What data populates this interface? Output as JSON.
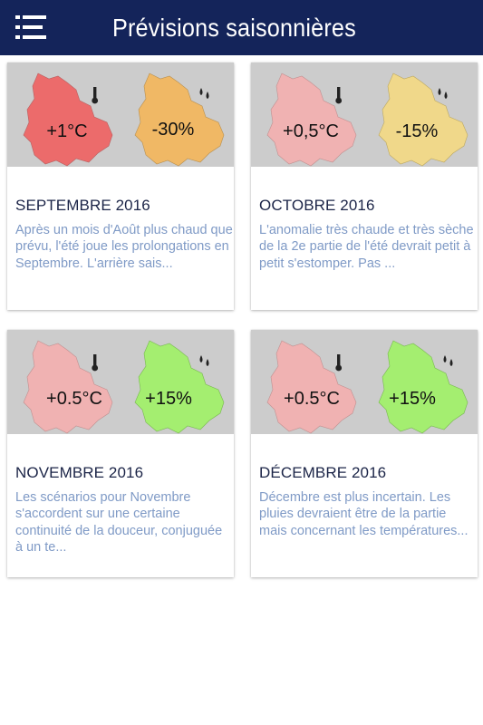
{
  "header": {
    "title": "Prévisions saisonnières",
    "bar_color": "#14245a"
  },
  "cards": [
    {
      "month": "SEPTEMBRE 2016",
      "excerpt": "Après un mois d'Août plus chaud que prévu, l'été joue les prolongations en Septembre. L'arrière sais...",
      "temp_label": "+1°C",
      "rain_label": "-30%",
      "temp_color": "#ec6b6b",
      "rain_color": "#f0b865"
    },
    {
      "month": "OCTOBRE 2016",
      "excerpt": "L'anomalie très chaude et très sèche de la 2e partie de l'été devrait petit à petit s'estomper. Pas ...",
      "temp_label": "+0,5°C",
      "rain_label": "-15%",
      "temp_color": "#f0b2b2",
      "rain_color": "#f0d88a"
    },
    {
      "month": "NOVEMBRE 2016",
      "excerpt": "Les scénarios pour Novembre s'accordent sur une certaine continuité de la douceur, conjuguée à un te...",
      "temp_label": "+0.5°C",
      "rain_label": "+15%",
      "temp_color": "#f0b2b2",
      "rain_color": "#a4ee70"
    },
    {
      "month": "DÉCEMBRE 2016",
      "excerpt": "Décembre est plus incertain. Les pluies devraient être de la partie mais concernant les températures...",
      "temp_label": "+0.5°C",
      "rain_label": "+15%",
      "temp_color": "#f0b2b2",
      "rain_color": "#a4ee70"
    }
  ],
  "icons": {
    "menu": "hamburger-menu-icon",
    "temperature": "thermometer-icon",
    "rain": "raindrops-icon"
  }
}
